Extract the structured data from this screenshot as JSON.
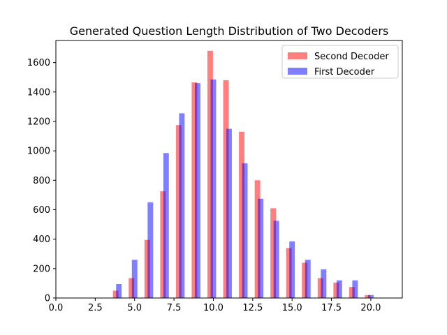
{
  "chart_data": {
    "type": "bar",
    "title": "Generated Question Length Distribution of Two Decoders",
    "xlabel": "",
    "ylabel": "",
    "xlim": [
      0,
      22
    ],
    "ylim": [
      0,
      1750
    ],
    "xticks": [
      0.0,
      2.5,
      5.0,
      7.5,
      10.0,
      12.5,
      15.0,
      17.5,
      20.0
    ],
    "xtick_labels": [
      "0.0",
      "2.5",
      "5.0",
      "7.5",
      "10.0",
      "12.5",
      "15.0",
      "17.5",
      "20.0"
    ],
    "yticks": [
      0,
      200,
      400,
      600,
      800,
      1000,
      1200,
      1400,
      1600
    ],
    "ytick_labels": [
      "0",
      "200",
      "400",
      "600",
      "800",
      "1000",
      "1200",
      "1400",
      "1600"
    ],
    "grid": false,
    "legend_position": "top-right",
    "series": [
      {
        "name": "Second Decoder",
        "color": "#ff0000",
        "alpha": 0.5,
        "x": [
          3.8,
          4.8,
          5.8,
          6.8,
          7.8,
          8.8,
          9.8,
          10.8,
          11.8,
          12.8,
          13.8,
          14.8,
          15.8,
          16.8,
          17.8,
          18.8,
          19.8
        ],
        "values": [
          50,
          135,
          395,
          725,
          1175,
          1465,
          1680,
          1480,
          1130,
          800,
          610,
          340,
          240,
          135,
          105,
          75,
          20
        ]
      },
      {
        "name": "First Decoder",
        "color": "#0000ff",
        "alpha": 0.5,
        "x": [
          4.0,
          5.0,
          6.0,
          7.0,
          8.0,
          9.0,
          10.0,
          11.0,
          12.0,
          13.0,
          14.0,
          15.0,
          16.0,
          17.0,
          18.0,
          19.0,
          20.0
        ],
        "values": [
          95,
          260,
          650,
          985,
          1255,
          1460,
          1485,
          1150,
          915,
          675,
          525,
          385,
          260,
          195,
          120,
          120,
          20
        ]
      }
    ]
  }
}
